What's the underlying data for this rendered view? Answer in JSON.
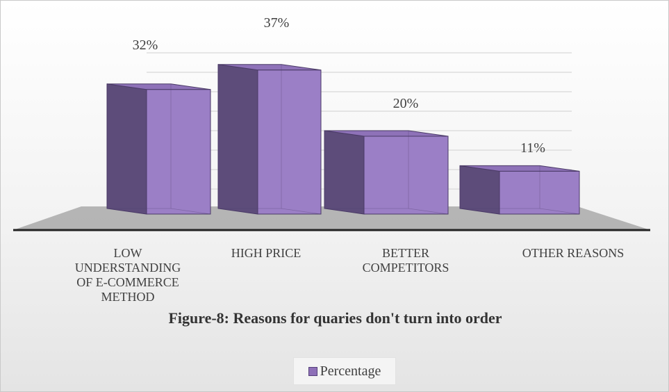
{
  "chart_data": {
    "type": "bar",
    "title": "Figure-8: Reasons for quaries don't turn into order",
    "categories": [
      "LOW\nUNDERSTANDING\nOF E-COMMERCE\nMETHOD",
      "HIGH PRICE",
      "BETTER\nCOMPETITORS",
      "OTHER REASONS"
    ],
    "series": [
      {
        "name": "Percentage",
        "values": [
          32,
          37,
          20,
          11
        ]
      }
    ],
    "data_labels": [
      "32%",
      "37%",
      "20%",
      "11%"
    ],
    "ylim": [
      0,
      40
    ],
    "xlabel": "",
    "ylabel": "",
    "grid": true,
    "legend_position": "bottom",
    "style": "3d-column",
    "colors": {
      "bar_front": "#9b7fc6",
      "bar_side": "#5d4c7a",
      "bar_top": "#8e72b8",
      "bar_edge": "#4a3a66",
      "floor": "#a9a9a9",
      "gridline": "#dedede"
    }
  }
}
